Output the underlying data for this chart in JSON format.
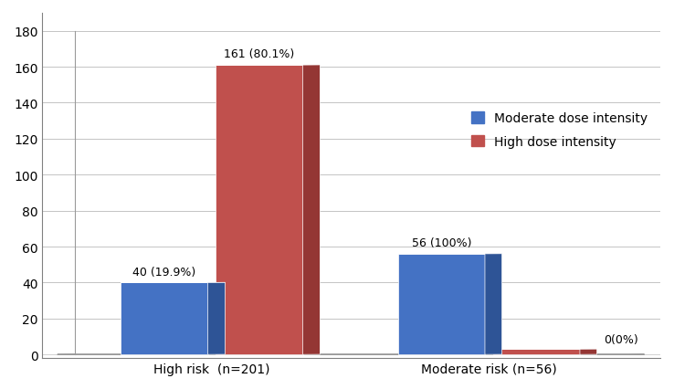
{
  "groups": [
    "High risk  (n=201)",
    "Moderate risk (n=56)"
  ],
  "series": [
    {
      "label": "Moderate dose intensity",
      "color_front": "#4472C4",
      "color_top": "#6B93D6",
      "color_side": "#2E5496",
      "values": [
        40,
        56
      ],
      "annotations": [
        "40 (19.9%)",
        "56 (100%)"
      ]
    },
    {
      "label": "High dose intensity",
      "color_front": "#C0504D",
      "color_top": "#D47B79",
      "color_side": "#943634",
      "values": [
        161,
        0
      ],
      "annotations": [
        "161 (80.1%)",
        "0(0%)"
      ]
    }
  ],
  "ylim": [
    0,
    180
  ],
  "yticks": [
    0,
    20,
    40,
    60,
    80,
    100,
    120,
    140,
    160,
    180
  ],
  "background_color": "#ffffff",
  "annotation_fontsize": 9,
  "tick_fontsize": 10,
  "legend_fontsize": 10,
  "axis_color": "#808080",
  "grid_color": "#C0C0C0"
}
